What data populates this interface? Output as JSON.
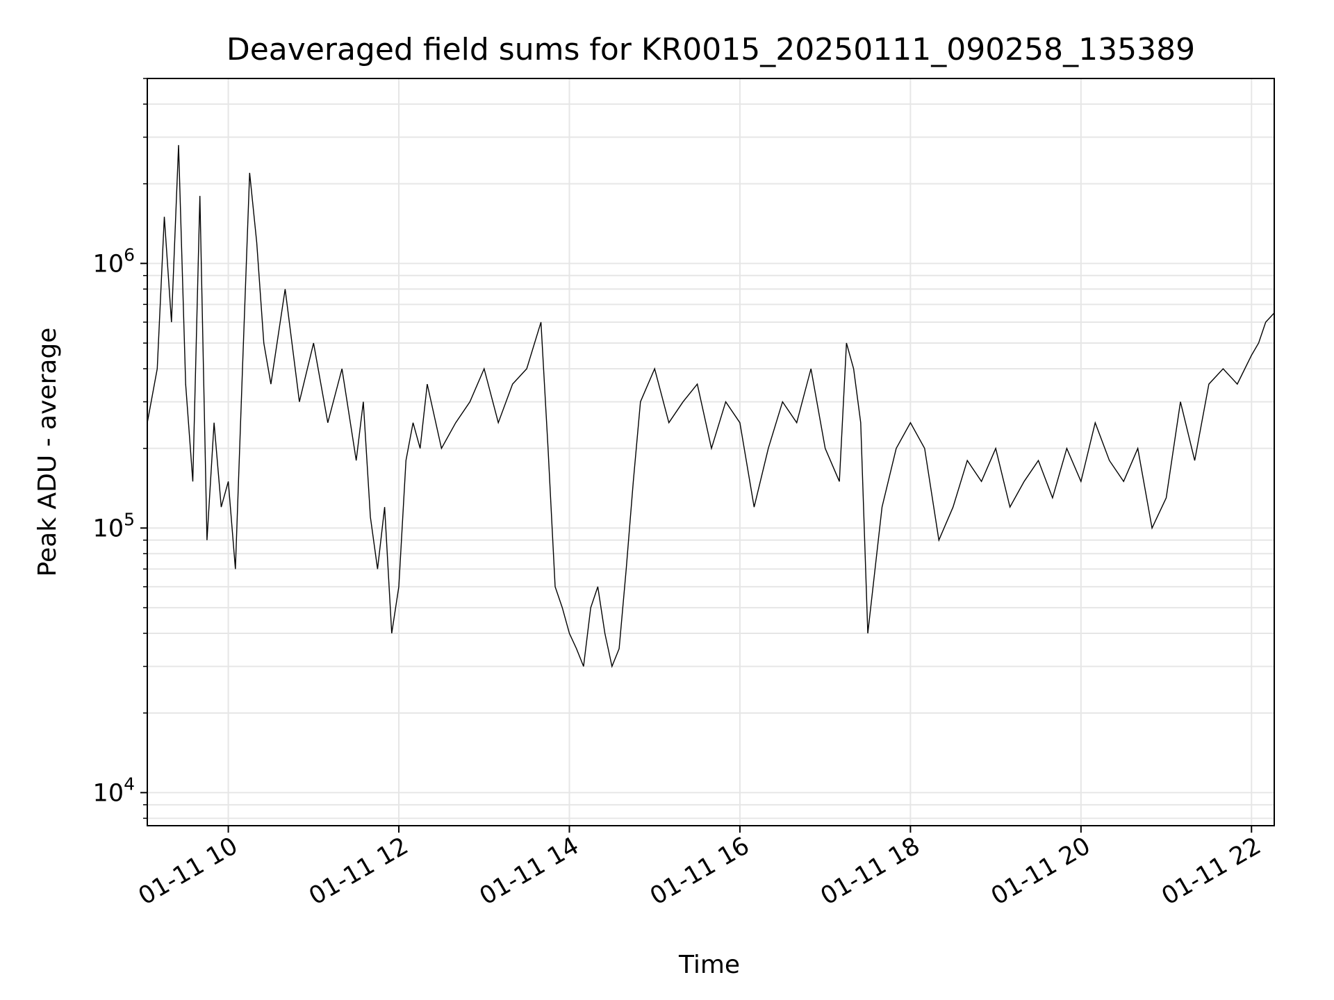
{
  "chart_data": {
    "type": "line",
    "title": "Deaveraged field sums for KR0015_20250111_090258_135389",
    "xlabel": "Time",
    "ylabel": "Peak ADU - average",
    "x_range": [
      "01-11 09:03",
      "01-11 22:16"
    ],
    "ylim": [
      7500,
      5000000
    ],
    "y_scale": "log",
    "grid": true,
    "line_color": "#000000",
    "x_ticks": [
      {
        "time": "01-11 10:00",
        "label": "01-11 10"
      },
      {
        "time": "01-11 12:00",
        "label": "01-11 12"
      },
      {
        "time": "01-11 14:00",
        "label": "01-11 14"
      },
      {
        "time": "01-11 16:00",
        "label": "01-11 16"
      },
      {
        "time": "01-11 18:00",
        "label": "01-11 18"
      },
      {
        "time": "01-11 20:00",
        "label": "01-11 20"
      },
      {
        "time": "01-11 22:00",
        "label": "01-11 22"
      }
    ],
    "y_ticks": [
      {
        "value": 10000,
        "base": "10",
        "exp": "4"
      },
      {
        "value": 100000,
        "base": "10",
        "exp": "5"
      },
      {
        "value": 1000000,
        "base": "10",
        "exp": "6"
      }
    ],
    "series": [
      {
        "x": [
          "01-11 09:03",
          "01-11 09:10",
          "01-11 09:15",
          "01-11 09:20",
          "01-11 09:25",
          "01-11 09:30",
          "01-11 09:35",
          "01-11 09:40",
          "01-11 09:45",
          "01-11 09:50",
          "01-11 09:55",
          "01-11 10:00",
          "01-11 10:05",
          "01-11 10:10",
          "01-11 10:15",
          "01-11 10:20",
          "01-11 10:25",
          "01-11 10:30",
          "01-11 10:40",
          "01-11 10:50",
          "01-11 11:00",
          "01-11 11:10",
          "01-11 11:20",
          "01-11 11:30",
          "01-11 11:35",
          "01-11 11:40",
          "01-11 11:45",
          "01-11 11:50",
          "01-11 11:55",
          "01-11 12:00",
          "01-11 12:05",
          "01-11 12:10",
          "01-11 12:15",
          "01-11 12:20",
          "01-11 12:30",
          "01-11 12:40",
          "01-11 12:50",
          "01-11 13:00",
          "01-11 13:10",
          "01-11 13:20",
          "01-11 13:30",
          "01-11 13:40",
          "01-11 13:45",
          "01-11 13:50",
          "01-11 13:55",
          "01-11 14:00",
          "01-11 14:05",
          "01-11 14:10",
          "01-11 14:15",
          "01-11 14:20",
          "01-11 14:25",
          "01-11 14:30",
          "01-11 14:35",
          "01-11 14:40",
          "01-11 14:45",
          "01-11 14:50",
          "01-11 15:00",
          "01-11 15:10",
          "01-11 15:20",
          "01-11 15:30",
          "01-11 15:40",
          "01-11 15:50",
          "01-11 16:00",
          "01-11 16:10",
          "01-11 16:20",
          "01-11 16:30",
          "01-11 16:40",
          "01-11 16:50",
          "01-11 17:00",
          "01-11 17:10",
          "01-11 17:15",
          "01-11 17:20",
          "01-11 17:25",
          "01-11 17:30",
          "01-11 17:40",
          "01-11 17:50",
          "01-11 18:00",
          "01-11 18:10",
          "01-11 18:20",
          "01-11 18:30",
          "01-11 18:40",
          "01-11 18:50",
          "01-11 19:00",
          "01-11 19:10",
          "01-11 19:20",
          "01-11 19:30",
          "01-11 19:40",
          "01-11 19:50",
          "01-11 20:00",
          "01-11 20:10",
          "01-11 20:20",
          "01-11 20:30",
          "01-11 20:40",
          "01-11 20:50",
          "01-11 21:00",
          "01-11 21:10",
          "01-11 21:20",
          "01-11 21:30",
          "01-11 21:40",
          "01-11 21:50",
          "01-11 22:00",
          "01-11 22:05",
          "01-11 22:10",
          "01-11 22:16"
        ],
        "y": [
          250000,
          400000,
          1500000,
          600000,
          2800000,
          350000,
          150000,
          1800000,
          90000,
          250000,
          120000,
          150000,
          70000,
          400000,
          2200000,
          1200000,
          500000,
          350000,
          800000,
          300000,
          500000,
          250000,
          400000,
          180000,
          300000,
          110000,
          70000,
          120000,
          40000,
          60000,
          180000,
          250000,
          200000,
          350000,
          200000,
          250000,
          300000,
          400000,
          250000,
          350000,
          400000,
          600000,
          200000,
          60000,
          50000,
          40000,
          35000,
          30000,
          50000,
          60000,
          40000,
          30000,
          35000,
          70000,
          150000,
          300000,
          400000,
          250000,
          300000,
          350000,
          200000,
          300000,
          250000,
          120000,
          200000,
          300000,
          250000,
          400000,
          200000,
          150000,
          500000,
          400000,
          250000,
          40000,
          120000,
          200000,
          250000,
          200000,
          90000,
          120000,
          180000,
          150000,
          200000,
          120000,
          150000,
          180000,
          130000,
          200000,
          150000,
          250000,
          180000,
          150000,
          200000,
          100000,
          130000,
          300000,
          180000,
          350000,
          400000,
          350000,
          450000,
          500000,
          600000,
          650000
        ]
      }
    ]
  }
}
